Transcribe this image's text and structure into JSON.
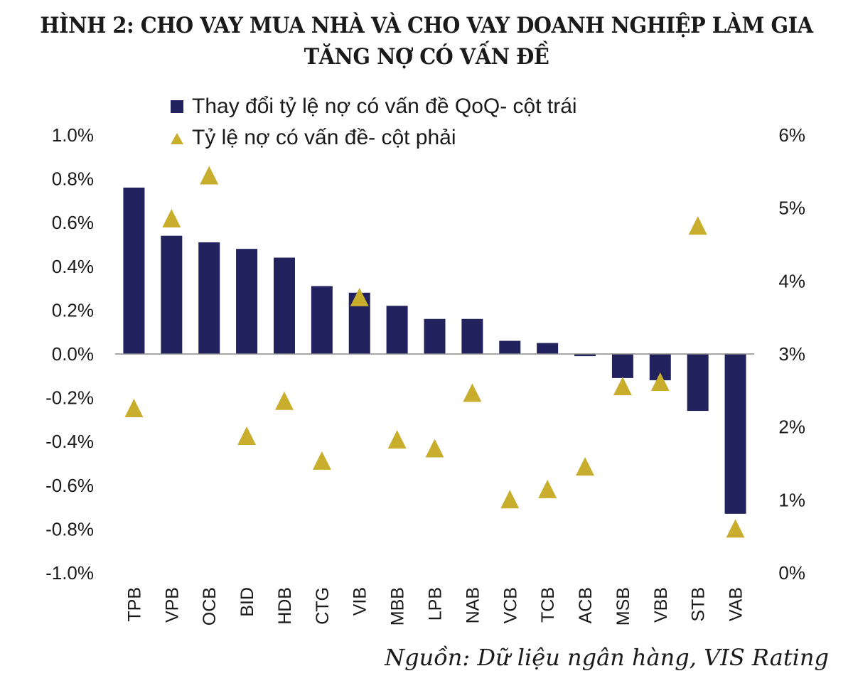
{
  "chart_data": {
    "type": "bar",
    "title": "HÌNH 2: CHO VAY MUA NHÀ VÀ CHO VAY DOANH NGHIỆP LÀM GIA TĂNG NỢ CÓ VẤN ĐỀ",
    "title_lines": [
      "HÌNH 2: CHO VAY MUA NHÀ VÀ CHO VAY DOANH NGHIỆP LÀM GIA",
      "TĂNG NỢ CÓ VẤN ĐỀ"
    ],
    "categories": [
      "TPB",
      "VPB",
      "OCB",
      "BID",
      "HDB",
      "CTG",
      "VIB",
      "MBB",
      "LPB",
      "NAB",
      "VCB",
      "TCB",
      "ACB",
      "MSB",
      "VBB",
      "STB",
      "VAB"
    ],
    "series": [
      {
        "name": "Thay đổi tỷ lệ nợ có vấn đề QoQ- cột trái",
        "type": "bar",
        "axis": "left",
        "color": "#22235E",
        "unit": "%",
        "values": [
          0.76,
          0.54,
          0.51,
          0.48,
          0.44,
          0.31,
          0.28,
          0.22,
          0.16,
          0.16,
          0.06,
          0.05,
          -0.01,
          -0.11,
          -0.12,
          -0.26,
          -0.73
        ]
      },
      {
        "name": "Tỷ lệ nợ có vấn đề- cột phải",
        "type": "scatter",
        "marker": "triangle",
        "axis": "right",
        "color": "#C9AE2E",
        "unit": "%",
        "values": [
          2.26,
          4.86,
          5.45,
          1.88,
          2.36,
          1.54,
          3.78,
          1.83,
          1.71,
          2.47,
          1.01,
          1.15,
          1.46,
          2.56,
          2.62,
          4.76,
          0.61
        ]
      }
    ],
    "left_axis": {
      "ylim": [
        -1.0,
        1.0
      ],
      "ticks": [
        1.0,
        0.8,
        0.6,
        0.4,
        0.2,
        0.0,
        -0.2,
        -0.4,
        -0.6,
        -0.8,
        -1.0
      ],
      "tick_labels": [
        "1.0%",
        "0.8%",
        "0.6%",
        "0.4%",
        "0.2%",
        "0.0%",
        "-0.2%",
        "-0.4%",
        "-0.6%",
        "-0.8%",
        "-1.0%"
      ]
    },
    "right_axis": {
      "ylim": [
        0,
        6
      ],
      "ticks": [
        6,
        5,
        4,
        3,
        2,
        1,
        0
      ],
      "tick_labels": [
        "6%",
        "5%",
        "4%",
        "3%",
        "2%",
        "1%",
        "0%"
      ]
    },
    "xlabel": "",
    "ylabel": "",
    "grid": false,
    "legend_position": "top-left",
    "source": "Nguồn: Dữ liệu ngân hàng, VIS Rating"
  }
}
